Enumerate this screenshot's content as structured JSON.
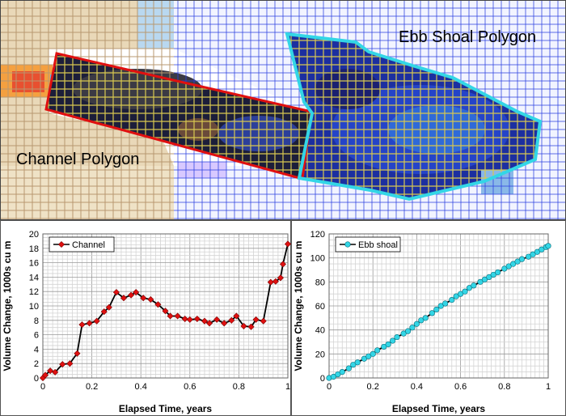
{
  "map": {
    "ebb_label": "Ebb Shoal Polygon",
    "channel_label": "Channel Polygon",
    "colors": {
      "channel_outline": "#e01010",
      "ebb_outline": "#33d6e6",
      "grid_blue": "#2a3fe0",
      "grid_yellow": "#d8c850",
      "grid_sand": "#b89870"
    }
  },
  "chart_data": [
    {
      "type": "line",
      "xlabel": "Elapsed Time, years",
      "ylabel": "Volume Change, 1000s cu m",
      "xlim": [
        0,
        1
      ],
      "ylim": [
        0,
        20
      ],
      "xticks": [
        "0",
        "0.2",
        "0.4",
        "0.6",
        "0.8",
        "1"
      ],
      "yticks": [
        "0",
        "2",
        "4",
        "6",
        "8",
        "10",
        "12",
        "14",
        "16",
        "18",
        "20"
      ],
      "grid": true,
      "legend": "top-left",
      "series": [
        {
          "name": "Channel",
          "color": "#e01010",
          "x": [
            0.0,
            0.01,
            0.03,
            0.05,
            0.08,
            0.11,
            0.14,
            0.16,
            0.19,
            0.22,
            0.25,
            0.27,
            0.3,
            0.33,
            0.36,
            0.38,
            0.41,
            0.44,
            0.47,
            0.5,
            0.52,
            0.55,
            0.58,
            0.6,
            0.63,
            0.66,
            0.68,
            0.71,
            0.74,
            0.77,
            0.79,
            0.82,
            0.85,
            0.87,
            0.9,
            0.93,
            0.95,
            0.97,
            0.98,
            1.0
          ],
          "y": [
            0.0,
            0.4,
            1.0,
            0.8,
            1.9,
            2.0,
            3.4,
            7.4,
            7.6,
            7.9,
            9.2,
            9.8,
            11.9,
            11.1,
            11.5,
            11.9,
            11.1,
            10.9,
            10.2,
            9.3,
            8.6,
            8.6,
            8.2,
            8.1,
            8.2,
            7.9,
            7.6,
            8.1,
            7.6,
            8.0,
            8.6,
            7.2,
            7.1,
            8.1,
            7.9,
            13.3,
            13.4,
            13.9,
            15.8,
            18.6
          ]
        }
      ]
    },
    {
      "type": "line",
      "xlabel": "Elapsed Time, years",
      "ylabel": "Volume Change, 1000s cu m",
      "xlim": [
        0,
        1
      ],
      "ylim": [
        0,
        120
      ],
      "xticks": [
        "0",
        "0.2",
        "0.4",
        "0.6",
        "0.8",
        "1"
      ],
      "yticks": [
        "0",
        "20",
        "40",
        "60",
        "80",
        "100",
        "120"
      ],
      "grid": true,
      "legend": "top-left",
      "series": [
        {
          "name": "Ebb shoal",
          "color": "#33d6e6",
          "x": [
            0.0,
            0.02,
            0.04,
            0.06,
            0.09,
            0.11,
            0.13,
            0.16,
            0.18,
            0.2,
            0.22,
            0.25,
            0.27,
            0.29,
            0.31,
            0.34,
            0.36,
            0.38,
            0.4,
            0.42,
            0.44,
            0.47,
            0.49,
            0.51,
            0.53,
            0.56,
            0.58,
            0.6,
            0.62,
            0.64,
            0.66,
            0.69,
            0.71,
            0.73,
            0.75,
            0.77,
            0.8,
            0.82,
            0.84,
            0.86,
            0.88,
            0.91,
            0.93,
            0.95,
            0.97,
            0.99,
            1.0
          ],
          "y": [
            0,
            1,
            3,
            5,
            8,
            11,
            13,
            16,
            18,
            20,
            23,
            26,
            28,
            31,
            34,
            37,
            39,
            42,
            45,
            48,
            50,
            54,
            57,
            60,
            62,
            65,
            68,
            70,
            72,
            75,
            77,
            80,
            82,
            84,
            86,
            88,
            91,
            93,
            95,
            97,
            99,
            101,
            103,
            105,
            107,
            109,
            110
          ]
        }
      ]
    }
  ]
}
